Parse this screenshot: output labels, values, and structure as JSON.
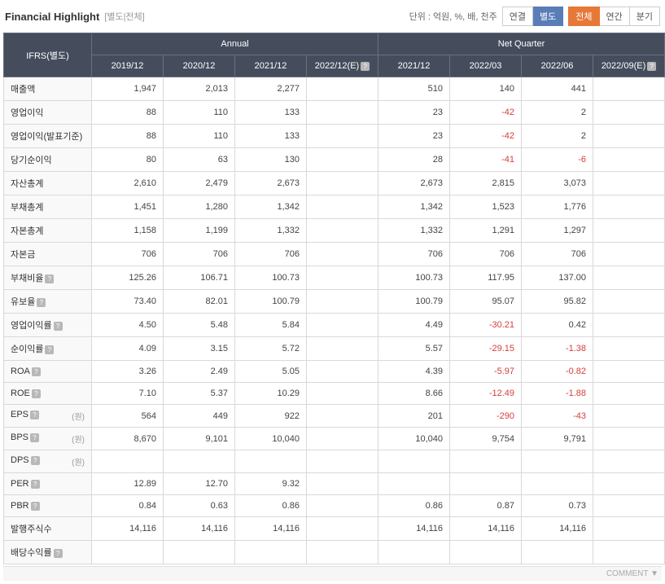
{
  "header": {
    "title": "Financial Highlight",
    "subtitle": "[별도|전체]",
    "unit_text": "단위 : 억원, %, 배, 천주",
    "tabs1": [
      "연결",
      "별도"
    ],
    "tabs1_active": 1,
    "tabs2": [
      "전체",
      "연간",
      "분기"
    ],
    "tabs2_active": 0
  },
  "table": {
    "corner": "IFRS(별도)",
    "group_headers": [
      "Annual",
      "Net Quarter"
    ],
    "annual_cols": [
      "2019/12",
      "2020/12",
      "2021/12",
      "2022/12(E)"
    ],
    "quarter_cols": [
      "2021/12",
      "2022/03",
      "2022/06",
      "2022/09(E)"
    ],
    "rows": [
      {
        "label": "매출액",
        "a": [
          "1,947",
          "2,013",
          "2,277",
          ""
        ],
        "q": [
          "510",
          "140",
          "441",
          ""
        ]
      },
      {
        "label": "영업이익",
        "a": [
          "88",
          "110",
          "133",
          ""
        ],
        "q": [
          "23",
          "-42",
          "2",
          ""
        ]
      },
      {
        "label": "영업이익(발표기준)",
        "a": [
          "88",
          "110",
          "133",
          ""
        ],
        "q": [
          "23",
          "-42",
          "2",
          ""
        ]
      },
      {
        "label": "당기순이익",
        "a": [
          "80",
          "63",
          "130",
          ""
        ],
        "q": [
          "28",
          "-41",
          "-6",
          ""
        ]
      },
      {
        "label": "자산총계",
        "a": [
          "2,610",
          "2,479",
          "2,673",
          ""
        ],
        "q": [
          "2,673",
          "2,815",
          "3,073",
          ""
        ]
      },
      {
        "label": "부채총계",
        "a": [
          "1,451",
          "1,280",
          "1,342",
          ""
        ],
        "q": [
          "1,342",
          "1,523",
          "1,776",
          ""
        ]
      },
      {
        "label": "자본총계",
        "a": [
          "1,158",
          "1,199",
          "1,332",
          ""
        ],
        "q": [
          "1,332",
          "1,291",
          "1,297",
          ""
        ]
      },
      {
        "label": "자본금",
        "a": [
          "706",
          "706",
          "706",
          ""
        ],
        "q": [
          "706",
          "706",
          "706",
          ""
        ]
      },
      {
        "label": "부채비율",
        "help": true,
        "a": [
          "125.26",
          "106.71",
          "100.73",
          ""
        ],
        "q": [
          "100.73",
          "117.95",
          "137.00",
          ""
        ]
      },
      {
        "label": "유보율",
        "help": true,
        "a": [
          "73.40",
          "82.01",
          "100.79",
          ""
        ],
        "q": [
          "100.79",
          "95.07",
          "95.82",
          ""
        ]
      },
      {
        "label": "영업이익률",
        "help": true,
        "a": [
          "4.50",
          "5.48",
          "5.84",
          ""
        ],
        "q": [
          "4.49",
          "-30.21",
          "0.42",
          ""
        ]
      },
      {
        "label": "순이익률",
        "help": true,
        "a": [
          "4.09",
          "3.15",
          "5.72",
          ""
        ],
        "q": [
          "5.57",
          "-29.15",
          "-1.38",
          ""
        ]
      },
      {
        "label": "ROA",
        "help": true,
        "a": [
          "3.26",
          "2.49",
          "5.05",
          ""
        ],
        "q": [
          "4.39",
          "-5.97",
          "-0.82",
          ""
        ]
      },
      {
        "label": "ROE",
        "help": true,
        "a": [
          "7.10",
          "5.37",
          "10.29",
          ""
        ],
        "q": [
          "8.66",
          "-12.49",
          "-1.88",
          ""
        ]
      },
      {
        "label": "EPS",
        "help": true,
        "unit": "(원)",
        "a": [
          "564",
          "449",
          "922",
          ""
        ],
        "q": [
          "201",
          "-290",
          "-43",
          ""
        ]
      },
      {
        "label": "BPS",
        "help": true,
        "unit": "(원)",
        "a": [
          "8,670",
          "9,101",
          "10,040",
          ""
        ],
        "q": [
          "10,040",
          "9,754",
          "9,791",
          ""
        ]
      },
      {
        "label": "DPS",
        "help": true,
        "unit": "(원)",
        "a": [
          "",
          "",
          "",
          ""
        ],
        "q": [
          "",
          "",
          "",
          ""
        ]
      },
      {
        "label": "PER",
        "help": true,
        "a": [
          "12.89",
          "12.70",
          "9.32",
          ""
        ],
        "q": [
          "",
          "",
          "",
          ""
        ]
      },
      {
        "label": "PBR",
        "help": true,
        "a": [
          "0.84",
          "0.63",
          "0.86",
          ""
        ],
        "q": [
          "0.86",
          "0.87",
          "0.73",
          ""
        ]
      },
      {
        "label": "발행주식수",
        "a": [
          "14,116",
          "14,116",
          "14,116",
          ""
        ],
        "q": [
          "14,116",
          "14,116",
          "14,116",
          ""
        ]
      },
      {
        "label": "배당수익률",
        "help": true,
        "a": [
          "",
          "",
          "",
          ""
        ],
        "q": [
          "",
          "",
          "",
          ""
        ]
      }
    ]
  },
  "footer": "COMMENT",
  "colors": {
    "negative": "#d43f3a"
  }
}
